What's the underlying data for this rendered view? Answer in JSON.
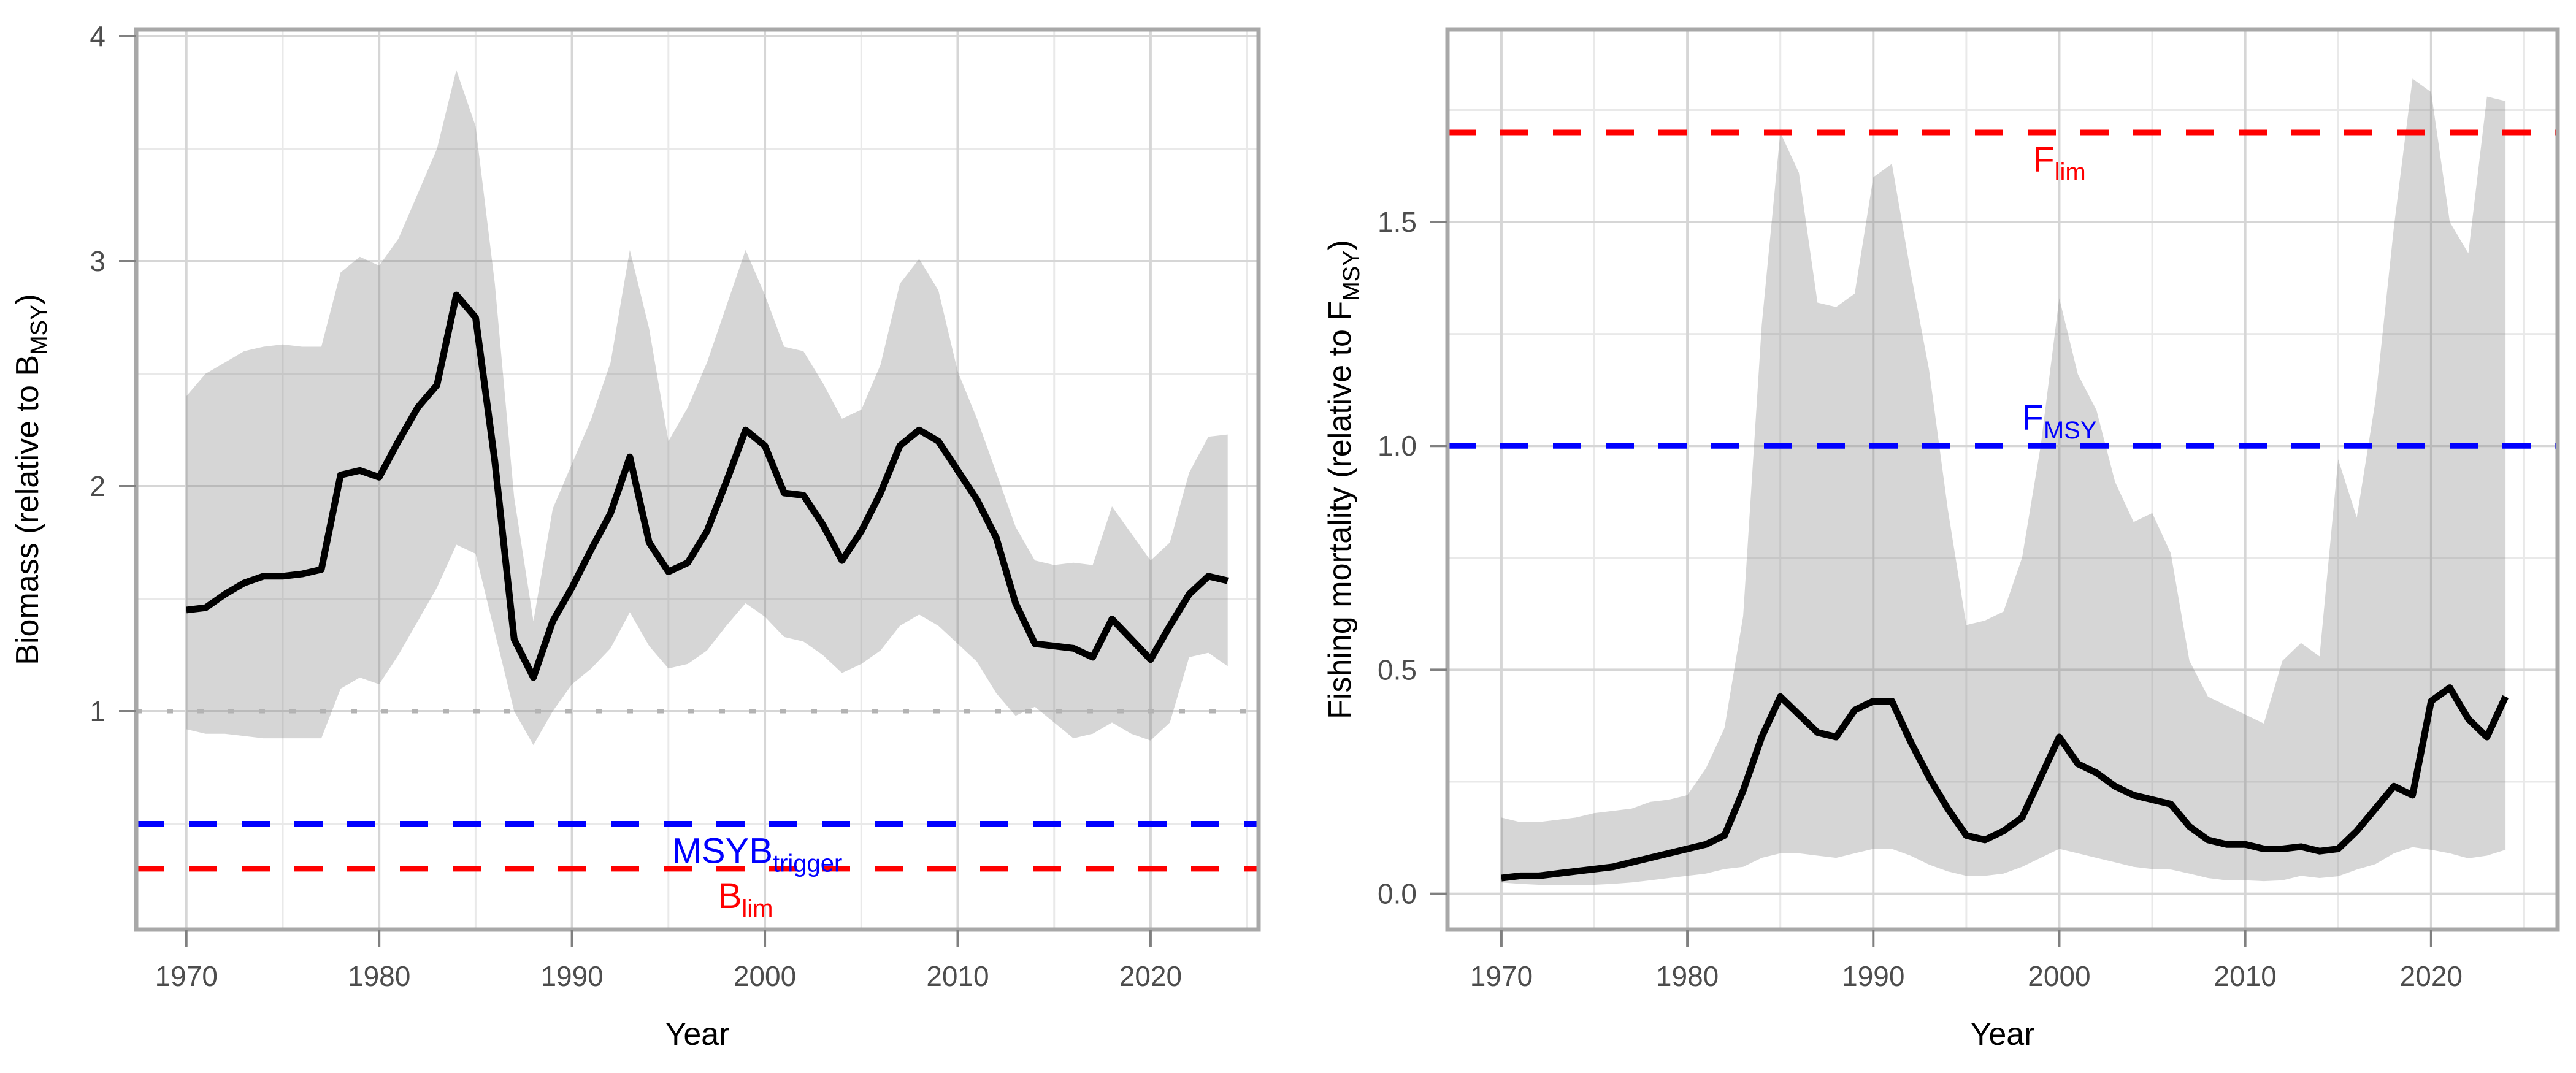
{
  "figure": {
    "background": "#ffffff",
    "colors": {
      "median_line": "#000000",
      "ribbon": "#808080",
      "grid_major": "#d6d6d6",
      "grid_minor": "#e9e9e9",
      "panel_border": "#a8a8a8",
      "tick_mark": "#808080",
      "tick_text": "#4d4d4d",
      "axis_title": "#000000",
      "reference_blue": "#0000ff",
      "reference_red": "#ff0000",
      "reference_dotted_gray": "#b3b3b3"
    }
  },
  "chart_data": [
    {
      "id": "biomass",
      "type": "line",
      "xlabel": "Year",
      "ylabel_parts": [
        {
          "t": "Biomass (relative to B"
        },
        {
          "t": "MSY",
          "sub": true
        },
        {
          "t": ")"
        }
      ],
      "xlim": [
        1967.4,
        2025.6
      ],
      "ylim": [
        0.03,
        4.03
      ],
      "grid": true,
      "legend": "none",
      "x_ticks": [
        {
          "v": 1970,
          "label": "1970"
        },
        {
          "v": 1980,
          "label": "1980"
        },
        {
          "v": 1990,
          "label": "1990"
        },
        {
          "v": 2000,
          "label": "2000"
        },
        {
          "v": 2010,
          "label": "2010"
        },
        {
          "v": 2020,
          "label": "2020"
        }
      ],
      "x_minor": [
        1975,
        1985,
        1995,
        2005,
        2015,
        2025
      ],
      "y_ticks": [
        {
          "v": 1,
          "label": "1"
        },
        {
          "v": 2,
          "label": "2"
        },
        {
          "v": 3,
          "label": "3"
        },
        {
          "v": 4,
          "label": "4"
        }
      ],
      "y_minor": [
        0.5,
        1.5,
        2.5,
        3.5
      ],
      "years": [
        1970,
        1971,
        1972,
        1973,
        1974,
        1975,
        1976,
        1977,
        1978,
        1979,
        1980,
        1981,
        1982,
        1983,
        1984,
        1985,
        1986,
        1987,
        1988,
        1989,
        1990,
        1991,
        1992,
        1993,
        1994,
        1995,
        1996,
        1997,
        1998,
        1999,
        2000,
        2001,
        2002,
        2003,
        2004,
        2005,
        2006,
        2007,
        2008,
        2009,
        2010,
        2011,
        2012,
        2013,
        2014,
        2015,
        2016,
        2017,
        2018,
        2019,
        2020,
        2021,
        2022,
        2023,
        2024
      ],
      "series": [
        {
          "name": "median",
          "values": [
            1.45,
            1.46,
            1.52,
            1.57,
            1.6,
            1.6,
            1.61,
            1.63,
            2.05,
            2.07,
            2.04,
            2.2,
            2.35,
            2.45,
            2.85,
            2.75,
            2.11,
            1.32,
            1.15,
            1.4,
            1.55,
            1.72,
            1.88,
            2.13,
            1.75,
            1.62,
            1.66,
            1.8,
            2.02,
            2.25,
            2.18,
            1.97,
            1.96,
            1.83,
            1.67,
            1.8,
            1.97,
            2.18,
            2.25,
            2.2,
            2.07,
            1.94,
            1.77,
            1.48,
            1.3,
            1.29,
            1.28,
            1.24,
            1.41,
            1.32,
            1.23,
            1.38,
            1.52,
            1.6,
            1.58
          ]
        },
        {
          "name": "upper",
          "values": [
            2.4,
            2.5,
            2.55,
            2.6,
            2.62,
            2.63,
            2.62,
            2.62,
            2.95,
            3.02,
            2.98,
            3.1,
            3.3,
            3.5,
            3.85,
            3.6,
            2.9,
            1.95,
            1.4,
            1.9,
            2.1,
            2.3,
            2.55,
            3.05,
            2.7,
            2.2,
            2.35,
            2.55,
            2.8,
            3.05,
            2.85,
            2.62,
            2.6,
            2.46,
            2.3,
            2.34,
            2.54,
            2.9,
            3.01,
            2.87,
            2.51,
            2.3,
            2.06,
            1.82,
            1.67,
            1.65,
            1.66,
            1.65,
            1.91,
            1.79,
            1.67,
            1.75,
            2.06,
            2.22,
            2.23
          ]
        },
        {
          "name": "lower",
          "values": [
            0.92,
            0.9,
            0.9,
            0.89,
            0.88,
            0.88,
            0.88,
            0.88,
            1.1,
            1.15,
            1.12,
            1.25,
            1.4,
            1.55,
            1.74,
            1.7,
            1.35,
            1.0,
            0.85,
            1.0,
            1.12,
            1.19,
            1.28,
            1.44,
            1.29,
            1.19,
            1.21,
            1.27,
            1.38,
            1.48,
            1.42,
            1.33,
            1.31,
            1.25,
            1.17,
            1.21,
            1.27,
            1.38,
            1.43,
            1.38,
            1.3,
            1.22,
            1.08,
            0.98,
            1.02,
            0.95,
            0.88,
            0.9,
            0.95,
            0.9,
            0.87,
            0.95,
            1.24,
            1.26,
            1.2
          ]
        }
      ],
      "reference_lines": [
        {
          "name": "one",
          "value": 1.0,
          "style": "dotted",
          "color": "#b3b3b3",
          "label": null
        },
        {
          "name": "msyb-trigger",
          "value": 0.5,
          "style": "dashed",
          "color": "#0000ff",
          "label": {
            "main": "MSYB",
            "sub": "trigger"
          },
          "label_year": 1999.6,
          "label_side": "below"
        },
        {
          "name": "blim",
          "value": 0.3,
          "style": "dashed",
          "color": "#ff0000",
          "label": {
            "main": "B",
            "sub": "lim"
          },
          "label_year": 1999.0,
          "label_side": "below"
        }
      ]
    },
    {
      "id": "fishing-mortality",
      "type": "line",
      "xlabel": "Year",
      "ylabel_parts": [
        {
          "t": "Fishing mortality (relative to F"
        },
        {
          "t": "MSY",
          "sub": true
        },
        {
          "t": ")"
        }
      ],
      "xlim": [
        1967.1,
        2026.8
      ],
      "ylim": [
        -0.08,
        1.93
      ],
      "grid": true,
      "legend": "none",
      "x_ticks": [
        {
          "v": 1970,
          "label": "1970"
        },
        {
          "v": 1980,
          "label": "1980"
        },
        {
          "v": 1990,
          "label": "1990"
        },
        {
          "v": 2000,
          "label": "2000"
        },
        {
          "v": 2010,
          "label": "2010"
        },
        {
          "v": 2020,
          "label": "2020"
        }
      ],
      "x_minor": [
        1975,
        1985,
        1995,
        2005,
        2015,
        2025
      ],
      "y_ticks": [
        {
          "v": 0.0,
          "label": "0.0"
        },
        {
          "v": 0.5,
          "label": "0.5"
        },
        {
          "v": 1.0,
          "label": "1.0"
        },
        {
          "v": 1.5,
          "label": "1.5"
        }
      ],
      "y_minor": [
        0.25,
        0.75,
        1.25,
        1.75
      ],
      "years": [
        1970,
        1971,
        1972,
        1973,
        1974,
        1975,
        1976,
        1977,
        1978,
        1979,
        1980,
        1981,
        1982,
        1983,
        1984,
        1985,
        1986,
        1987,
        1988,
        1989,
        1990,
        1991,
        1992,
        1993,
        1994,
        1995,
        1996,
        1997,
        1998,
        1999,
        2000,
        2001,
        2002,
        2003,
        2004,
        2005,
        2006,
        2007,
        2008,
        2009,
        2010,
        2011,
        2012,
        2013,
        2014,
        2015,
        2016,
        2017,
        2018,
        2019,
        2020,
        2021,
        2022,
        2023,
        2024
      ],
      "series": [
        {
          "name": "median",
          "values": [
            0.035,
            0.04,
            0.04,
            0.045,
            0.05,
            0.055,
            0.06,
            0.07,
            0.08,
            0.09,
            0.1,
            0.11,
            0.13,
            0.23,
            0.35,
            0.44,
            0.4,
            0.36,
            0.35,
            0.41,
            0.43,
            0.43,
            0.34,
            0.26,
            0.19,
            0.13,
            0.12,
            0.14,
            0.17,
            0.26,
            0.35,
            0.29,
            0.27,
            0.24,
            0.22,
            0.21,
            0.2,
            0.15,
            0.12,
            0.11,
            0.11,
            0.1,
            0.1,
            0.105,
            0.095,
            0.1,
            0.14,
            0.19,
            0.24,
            0.22,
            0.43,
            0.46,
            0.39,
            0.35,
            0.44
          ]
        },
        {
          "name": "upper",
          "values": [
            0.17,
            0.16,
            0.16,
            0.165,
            0.17,
            0.18,
            0.185,
            0.19,
            0.205,
            0.21,
            0.22,
            0.28,
            0.37,
            0.62,
            1.27,
            1.7,
            1.61,
            1.32,
            1.31,
            1.34,
            1.6,
            1.63,
            1.39,
            1.17,
            0.86,
            0.6,
            0.61,
            0.63,
            0.75,
            1.0,
            1.33,
            1.16,
            1.08,
            0.92,
            0.83,
            0.85,
            0.76,
            0.52,
            0.44,
            0.42,
            0.4,
            0.38,
            0.52,
            0.56,
            0.53,
            0.97,
            0.84,
            1.1,
            1.49,
            1.82,
            1.79,
            1.5,
            1.43,
            1.78,
            1.77
          ]
        },
        {
          "name": "lower",
          "values": [
            0.025,
            0.022,
            0.02,
            0.02,
            0.02,
            0.02,
            0.022,
            0.025,
            0.03,
            0.035,
            0.04,
            0.045,
            0.055,
            0.06,
            0.08,
            0.09,
            0.09,
            0.085,
            0.08,
            0.09,
            0.1,
            0.1,
            0.085,
            0.065,
            0.05,
            0.04,
            0.04,
            0.045,
            0.06,
            0.08,
            0.1,
            0.09,
            0.08,
            0.07,
            0.06,
            0.055,
            0.054,
            0.045,
            0.035,
            0.03,
            0.03,
            0.028,
            0.03,
            0.04,
            0.035,
            0.039,
            0.054,
            0.066,
            0.09,
            0.104,
            0.098,
            0.09,
            0.079,
            0.085,
            0.098
          ]
        }
      ],
      "reference_lines": [
        {
          "name": "flim",
          "value": 1.7,
          "style": "dashed",
          "color": "#ff0000",
          "label": {
            "main": "F",
            "sub": "lim"
          },
          "label_year": 2000.0,
          "label_side": "below"
        },
        {
          "name": "fmsy",
          "value": 1.0,
          "style": "dashed",
          "color": "#0000ff",
          "label": {
            "main": "F",
            "sub": "MSY"
          },
          "label_year": 2000.0,
          "label_side": "above"
        }
      ]
    }
  ]
}
